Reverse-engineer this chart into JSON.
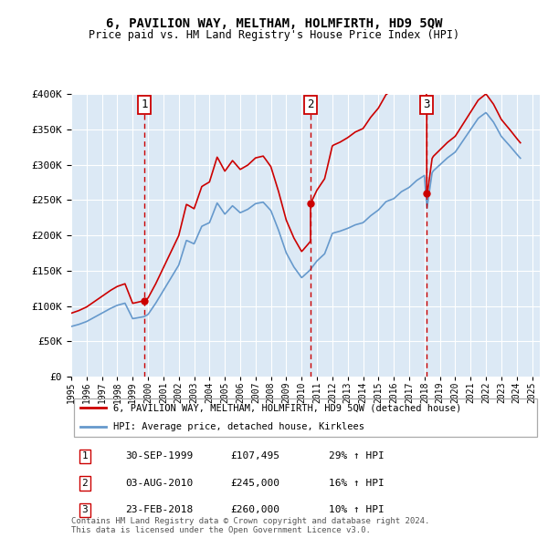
{
  "title": "6, PAVILION WAY, MELTHAM, HOLMFIRTH, HD9 5QW",
  "subtitle": "Price paid vs. HM Land Registry's House Price Index (HPI)",
  "ylim": [
    0,
    400000
  ],
  "xlim_start": 1995.0,
  "xlim_end": 2025.5,
  "sales": [
    {
      "label": "1",
      "date_str": "30-SEP-1999",
      "price": 107495,
      "x": 1999.75
    },
    {
      "label": "2",
      "date_str": "03-AUG-2010",
      "price": 245000,
      "x": 2010.58
    },
    {
      "label": "3",
      "date_str": "23-FEB-2018",
      "price": 260000,
      "x": 2018.14
    }
  ],
  "red_line_color": "#cc0000",
  "blue_line_color": "#6699cc",
  "plot_bg": "#dce9f5",
  "grid_color": "#ffffff",
  "legend_label_red": "6, PAVILION WAY, MELTHAM, HOLMFIRTH, HD9 5QW (detached house)",
  "legend_label_blue": "HPI: Average price, detached house, Kirklees",
  "footer": "Contains HM Land Registry data © Crown copyright and database right 2024.\nThis data is licensed under the Open Government Licence v3.0.",
  "table_rows": [
    {
      "num": "1",
      "date": "30-SEP-1999",
      "price": "£107,495",
      "pct": "29% ↑ HPI"
    },
    {
      "num": "2",
      "date": "03-AUG-2010",
      "price": "£245,000",
      "pct": "16% ↑ HPI"
    },
    {
      "num": "3",
      "date": "23-FEB-2018",
      "price": "£260,000",
      "pct": "10% ↑ HPI"
    }
  ]
}
